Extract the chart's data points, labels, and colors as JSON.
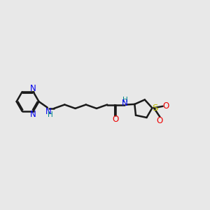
{
  "bg_color": "#e8e8e8",
  "bond_color": "#1a1a1a",
  "N_color": "#0000ee",
  "O_color": "#ee0000",
  "S_color": "#bbbb00",
  "NH_color": "#008888",
  "figsize": [
    3.0,
    3.0
  ],
  "dpi": 100,
  "xlim": [
    0,
    12
  ],
  "ylim": [
    0,
    10
  ]
}
